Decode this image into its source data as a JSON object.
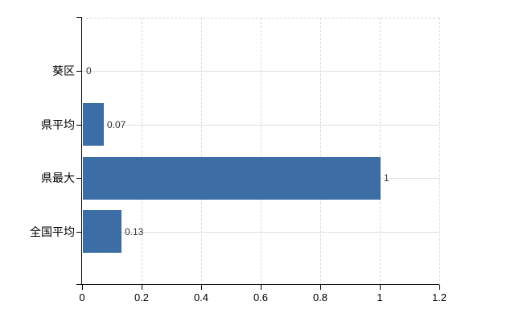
{
  "chart_data": {
    "type": "bar",
    "orientation": "horizontal",
    "title": "",
    "xlabel": "",
    "ylabel": "",
    "categories": [
      "葵区",
      "県平均",
      "県最大",
      "全国平均"
    ],
    "values": [
      0,
      0.07,
      1,
      0.13
    ],
    "data_labels": [
      "0",
      "0.07",
      "1",
      "0.13"
    ],
    "x_ticks": [
      0,
      0.2,
      0.4,
      0.6,
      0.8,
      1,
      1.2
    ],
    "x_tick_labels": [
      "0",
      "0.2",
      "0.4",
      "0.6",
      "0.8",
      "1",
      "1.2"
    ],
    "xlim": [
      0,
      1.2
    ],
    "grid": true,
    "legend": false
  },
  "colors": {
    "bar": "#3c6ea5",
    "axis": "#000000",
    "grid_horizontal": "#dce3dc",
    "grid_vertical": "#d8d8d8",
    "plot_border_dashed": "#d8d8d8",
    "data_label": "#333333",
    "tick_label": "#000000"
  }
}
